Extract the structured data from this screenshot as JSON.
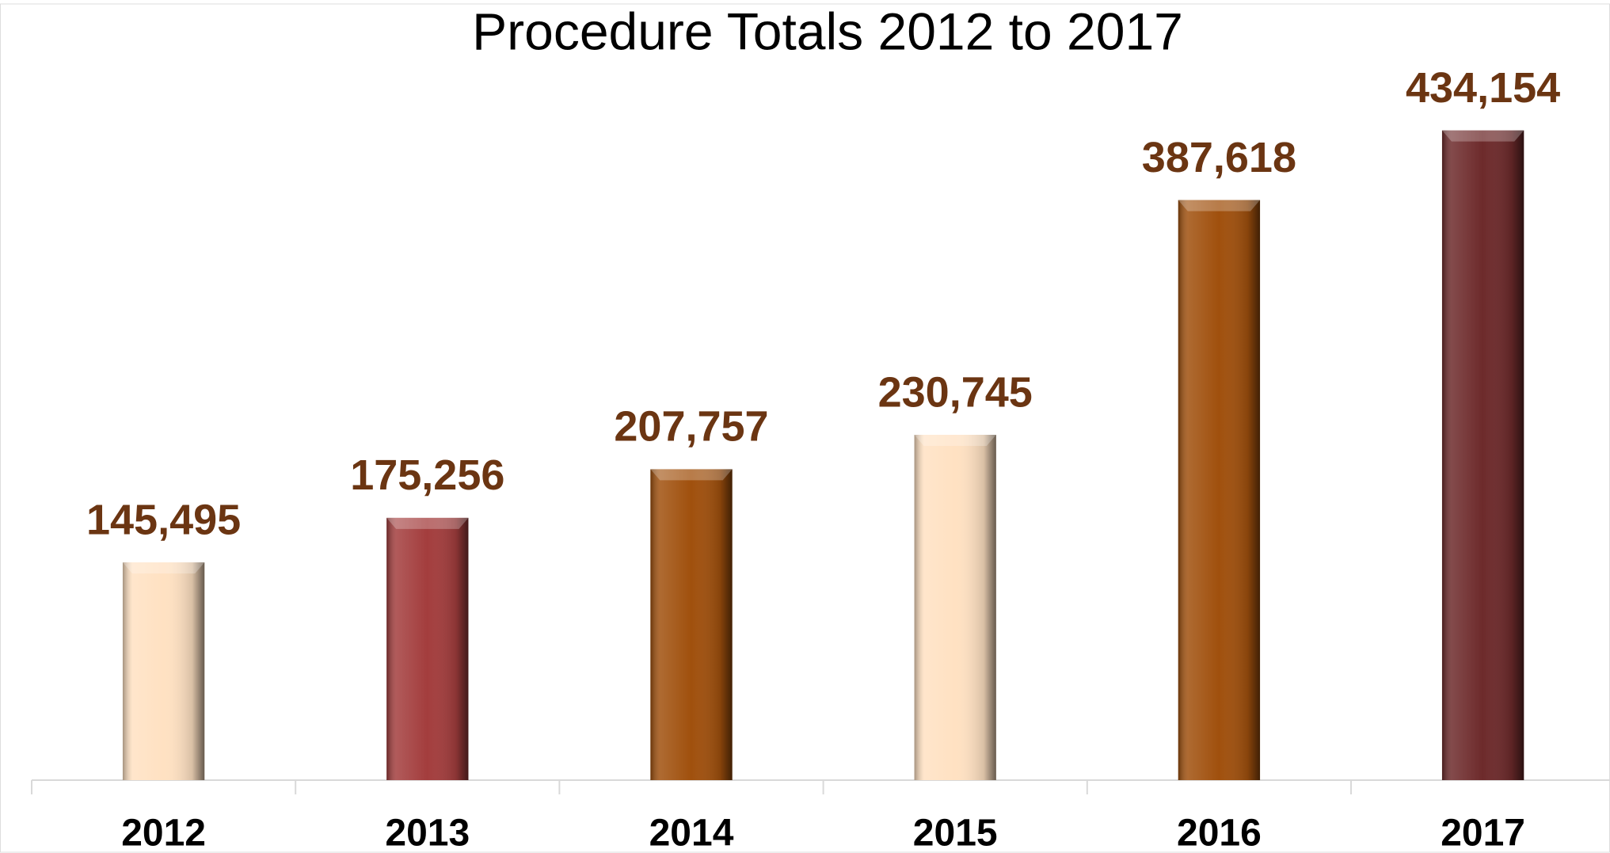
{
  "chart_data": {
    "type": "bar",
    "title": "Procedure Totals 2012 to 2017",
    "categories": [
      "2012",
      "2013",
      "2014",
      "2015",
      "2016",
      "2017"
    ],
    "values": [
      145495,
      175256,
      207757,
      230745,
      387618,
      434154
    ],
    "value_labels": [
      "145,495",
      "175,256",
      "207,757",
      "230,745",
      "387,618",
      "434,154"
    ],
    "colors": [
      "#ffe1c2",
      "#a33d3d",
      "#a0500d",
      "#ffe1c2",
      "#a0500d",
      "#6d2a2b"
    ],
    "label_color": "#6b3512",
    "ylim": [
      0,
      480000
    ],
    "grid": false
  }
}
